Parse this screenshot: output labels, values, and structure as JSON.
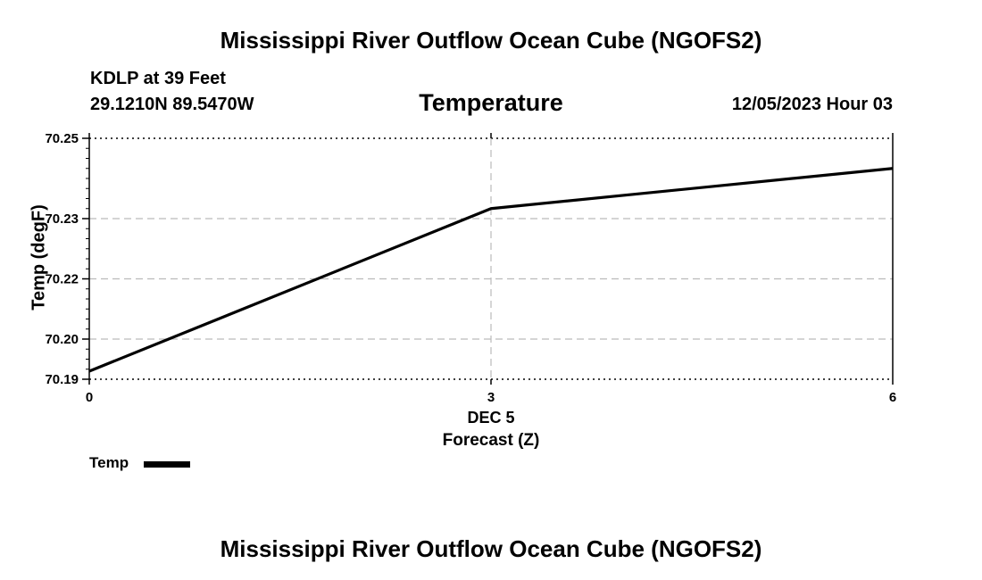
{
  "header": {
    "title_top": "Mississippi River Outflow Ocean Cube (NGOFS2)",
    "title_bottom": "Mississippi River Outflow Ocean Cube (NGOFS2)",
    "station": "KDLP at 39 Feet",
    "coords": "29.1210N  89.5470W",
    "variable": "Temperature",
    "datetime": "12/05/2023 Hour 03"
  },
  "chart_data": {
    "type": "line",
    "title": "Temperature",
    "xlabel": "Forecast (Z)",
    "ylabel": "Temp (degF)",
    "x": [
      0,
      3,
      6
    ],
    "xlim": [
      0,
      6
    ],
    "ylim": [
      70.19,
      70.25
    ],
    "x_ticks": [
      0,
      3,
      6
    ],
    "x_tick_labels": [
      "0",
      "3",
      "6"
    ],
    "x_date_label": "DEC 5",
    "y_ticks": [
      70.19,
      70.2,
      70.215,
      70.23,
      70.25
    ],
    "y_tick_labels": [
      "70.19",
      "70.20",
      "70.22",
      "70.23",
      "70.25"
    ],
    "grid": true,
    "legend_position": "bottom-left",
    "series": [
      {
        "name": "Temp",
        "values": [
          70.192,
          70.2325,
          70.2425
        ],
        "color": "#000000"
      }
    ]
  }
}
